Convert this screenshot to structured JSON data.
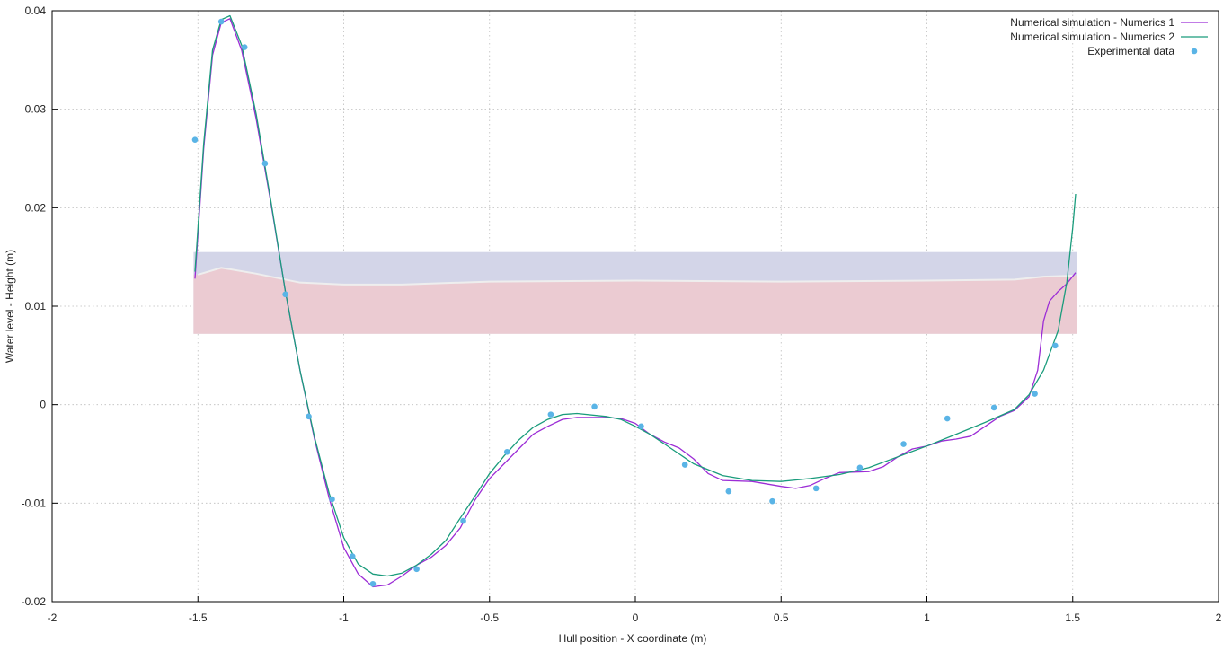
{
  "chart_data": {
    "type": "line",
    "xlabel": "Hull position - X coordinate (m)",
    "ylabel": "Water level - Height (m)",
    "xlim": [
      -2,
      2
    ],
    "ylim": [
      -0.02,
      0.04
    ],
    "grid": true,
    "legend_position": "top-right",
    "x_ticks": [
      "-2",
      "-1.5",
      "-1",
      "-0.5",
      "0",
      "0.5",
      "1",
      "1.5",
      "2"
    ],
    "y_ticks": [
      "-0.02",
      "-0.01",
      "0",
      "0.01",
      "0.02",
      "0.03",
      "0.04"
    ],
    "hull_band": {
      "x_range": [
        -1.515,
        1.515
      ],
      "top": 0.0155,
      "bottom": 0.0072,
      "upper_color": "#d3d5e8",
      "lower_color": "#ebcbd2",
      "waterline": [
        [
          -1.5,
          0.0132
        ],
        [
          -1.42,
          0.0139
        ],
        [
          -1.3,
          0.0133
        ],
        [
          -1.15,
          0.0124
        ],
        [
          -1.0,
          0.0122
        ],
        [
          -0.8,
          0.0122
        ],
        [
          -0.5,
          0.0125
        ],
        [
          0.0,
          0.0126
        ],
        [
          0.5,
          0.0125
        ],
        [
          1.0,
          0.0126
        ],
        [
          1.3,
          0.0127
        ],
        [
          1.4,
          0.013
        ],
        [
          1.5,
          0.0131
        ]
      ]
    },
    "series": [
      {
        "name": "Numerical simulation - Numerics 1",
        "color": "#9c2dd6",
        "points": [
          [
            -1.51,
            0.0128
          ],
          [
            -1.48,
            0.026
          ],
          [
            -1.45,
            0.0355
          ],
          [
            -1.42,
            0.0388
          ],
          [
            -1.39,
            0.0392
          ],
          [
            -1.35,
            0.036
          ],
          [
            -1.3,
            0.029
          ],
          [
            -1.25,
            0.0205
          ],
          [
            -1.2,
            0.0115
          ],
          [
            -1.15,
            0.0035
          ],
          [
            -1.1,
            -0.0035
          ],
          [
            -1.05,
            -0.0095
          ],
          [
            -1.0,
            -0.0145
          ],
          [
            -0.95,
            -0.0172
          ],
          [
            -0.9,
            -0.0185
          ],
          [
            -0.85,
            -0.0183
          ],
          [
            -0.8,
            -0.0174
          ],
          [
            -0.75,
            -0.0163
          ],
          [
            -0.7,
            -0.0155
          ],
          [
            -0.65,
            -0.0143
          ],
          [
            -0.6,
            -0.0125
          ],
          [
            -0.55,
            -0.0097
          ],
          [
            -0.5,
            -0.0075
          ],
          [
            -0.45,
            -0.006
          ],
          [
            -0.4,
            -0.0045
          ],
          [
            -0.35,
            -0.003
          ],
          [
            -0.3,
            -0.0022
          ],
          [
            -0.25,
            -0.0015
          ],
          [
            -0.2,
            -0.0013
          ],
          [
            -0.1,
            -0.0013
          ],
          [
            -0.05,
            -0.0014
          ],
          [
            0.0,
            -0.0019
          ],
          [
            0.05,
            -0.003
          ],
          [
            0.1,
            -0.0038
          ],
          [
            0.15,
            -0.0044
          ],
          [
            0.2,
            -0.0055
          ],
          [
            0.25,
            -0.007
          ],
          [
            0.3,
            -0.0077
          ],
          [
            0.4,
            -0.0078
          ],
          [
            0.5,
            -0.0083
          ],
          [
            0.55,
            -0.0085
          ],
          [
            0.6,
            -0.0082
          ],
          [
            0.65,
            -0.0075
          ],
          [
            0.7,
            -0.0069
          ],
          [
            0.8,
            -0.0068
          ],
          [
            0.85,
            -0.0063
          ],
          [
            0.9,
            -0.0053
          ],
          [
            0.95,
            -0.0045
          ],
          [
            1.0,
            -0.0042
          ],
          [
            1.05,
            -0.0037
          ],
          [
            1.1,
            -0.0035
          ],
          [
            1.15,
            -0.0032
          ],
          [
            1.2,
            -0.0022
          ],
          [
            1.25,
            -0.0012
          ],
          [
            1.3,
            -0.0006
          ],
          [
            1.35,
            0.0008
          ],
          [
            1.38,
            0.0035
          ],
          [
            1.4,
            0.0085
          ],
          [
            1.42,
            0.0105
          ],
          [
            1.45,
            0.0115
          ],
          [
            1.48,
            0.0123
          ],
          [
            1.51,
            0.0134
          ]
        ]
      },
      {
        "name": "Numerical simulation - Numerics 2",
        "color": "#1a9c7c",
        "points": [
          [
            -1.51,
            0.0135
          ],
          [
            -1.48,
            0.0265
          ],
          [
            -1.45,
            0.036
          ],
          [
            -1.42,
            0.0391
          ],
          [
            -1.39,
            0.0395
          ],
          [
            -1.35,
            0.0365
          ],
          [
            -1.3,
            0.0295
          ],
          [
            -1.25,
            0.0207
          ],
          [
            -1.2,
            0.0115
          ],
          [
            -1.15,
            0.0035
          ],
          [
            -1.1,
            -0.0033
          ],
          [
            -1.05,
            -0.009
          ],
          [
            -1.0,
            -0.0135
          ],
          [
            -0.95,
            -0.0162
          ],
          [
            -0.9,
            -0.0172
          ],
          [
            -0.85,
            -0.0174
          ],
          [
            -0.8,
            -0.0171
          ],
          [
            -0.75,
            -0.0163
          ],
          [
            -0.7,
            -0.0152
          ],
          [
            -0.65,
            -0.0138
          ],
          [
            -0.6,
            -0.0115
          ],
          [
            -0.55,
            -0.0093
          ],
          [
            -0.5,
            -0.007
          ],
          [
            -0.45,
            -0.0052
          ],
          [
            -0.4,
            -0.0036
          ],
          [
            -0.35,
            -0.0023
          ],
          [
            -0.3,
            -0.0015
          ],
          [
            -0.25,
            -0.001
          ],
          [
            -0.2,
            -0.0009
          ],
          [
            -0.1,
            -0.0012
          ],
          [
            -0.05,
            -0.0015
          ],
          [
            0.0,
            -0.0022
          ],
          [
            0.05,
            -0.003
          ],
          [
            0.1,
            -0.004
          ],
          [
            0.15,
            -0.005
          ],
          [
            0.2,
            -0.006
          ],
          [
            0.3,
            -0.0072
          ],
          [
            0.4,
            -0.0077
          ],
          [
            0.5,
            -0.0078
          ],
          [
            0.6,
            -0.0075
          ],
          [
            0.7,
            -0.0071
          ],
          [
            0.8,
            -0.0064
          ],
          [
            0.9,
            -0.0053
          ],
          [
            1.0,
            -0.0042
          ],
          [
            1.1,
            -0.003
          ],
          [
            1.2,
            -0.0018
          ],
          [
            1.3,
            -0.0005
          ],
          [
            1.35,
            0.001
          ],
          [
            1.4,
            0.0035
          ],
          [
            1.45,
            0.0075
          ],
          [
            1.48,
            0.0125
          ],
          [
            1.5,
            0.018
          ],
          [
            1.51,
            0.0214
          ]
        ]
      },
      {
        "name": "Experimental data",
        "color": "#5ab4e6",
        "marker": "dot",
        "points": [
          [
            -1.51,
            0.0269
          ],
          [
            -1.42,
            0.0389
          ],
          [
            -1.34,
            0.0363
          ],
          [
            -1.27,
            0.0245
          ],
          [
            -1.2,
            0.0112
          ],
          [
            -1.12,
            -0.0012
          ],
          [
            -1.04,
            -0.0096
          ],
          [
            -0.97,
            -0.0154
          ],
          [
            -0.9,
            -0.0182
          ],
          [
            -0.75,
            -0.0167
          ],
          [
            -0.59,
            -0.0118
          ],
          [
            -0.44,
            -0.0048
          ],
          [
            -0.29,
            -0.001
          ],
          [
            -0.14,
            -0.0002
          ],
          [
            0.02,
            -0.0022
          ],
          [
            0.17,
            -0.0061
          ],
          [
            0.32,
            -0.0088
          ],
          [
            0.47,
            -0.0098
          ],
          [
            0.62,
            -0.0085
          ],
          [
            0.77,
            -0.0064
          ],
          [
            0.92,
            -0.004
          ],
          [
            1.07,
            -0.0014
          ],
          [
            1.23,
            -0.0003
          ],
          [
            1.37,
            0.0011
          ],
          [
            1.44,
            0.006
          ]
        ]
      }
    ]
  }
}
